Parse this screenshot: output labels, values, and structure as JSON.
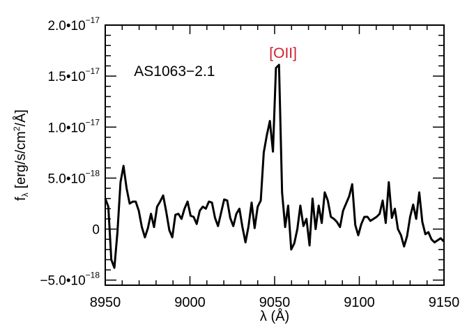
{
  "chart_data": {
    "type": "line",
    "title": "",
    "xlabel": "λ (Å)",
    "ylabel": "f_λ [erg/s/cm²/Å]",
    "ylabel_parts": {
      "f": "f",
      "lambda_sub": "λ",
      "unit_pre": "[erg/s/cm",
      "unit_sup": "2",
      "unit_post": "/Å]"
    },
    "xlim": [
      8950,
      9150
    ],
    "ylim": [
      -5.5e-18,
      2e-17
    ],
    "x_ticks": [
      {
        "value": 8950,
        "label": "8950"
      },
      {
        "value": 9000,
        "label": "9000"
      },
      {
        "value": 9050,
        "label": "9050"
      },
      {
        "value": 9100,
        "label": "9100"
      },
      {
        "value": 9150,
        "label": "9150"
      }
    ],
    "y_ticks": [
      {
        "value": 2e-17,
        "mantissa": "2.0•10",
        "exp": "−17"
      },
      {
        "value": 1.5e-17,
        "mantissa": "1.5•10",
        "exp": "−17"
      },
      {
        "value": 1e-17,
        "mantissa": "1.0•10",
        "exp": "−17"
      },
      {
        "value": 5e-18,
        "mantissa": "5.0•10",
        "exp": "−18"
      },
      {
        "value": 0,
        "mantissa": "0",
        "exp": ""
      },
      {
        "value": -5e-18,
        "mantissa": "−5.0•10",
        "exp": "−18"
      }
    ],
    "annotations": [
      {
        "id": "object",
        "text": "AS1063−2.1",
        "x": 8967,
        "y": 1.5e-17,
        "color": "#000000"
      },
      {
        "id": "line",
        "text": "[OII]",
        "x": 9055,
        "y": 1.68e-17,
        "color": "#cc1f2e"
      }
    ],
    "series": [
      {
        "color": "#000000",
        "x": [
          8950,
          8951.8,
          8953.6,
          8955.4,
          8957.2,
          8959.0,
          8960.8,
          8962.6,
          8964.4,
          8966.2,
          8968.0,
          8969.8,
          8971.6,
          8973.4,
          8975.2,
          8977.0,
          8978.8,
          8980.6,
          8982.4,
          8984.2,
          8986.0,
          8987.8,
          8989.6,
          8991.4,
          8993.2,
          8995.0,
          8996.8,
          8998.6,
          9000.4,
          9002.2,
          9004.0,
          9005.8,
          9007.6,
          9009.4,
          9011.2,
          9013.0,
          9014.8,
          9016.6,
          9018.4,
          9020.2,
          9022.0,
          9023.8,
          9025.6,
          9027.4,
          9029.2,
          9031.0,
          9032.8,
          9034.6,
          9036.4,
          9038.2,
          9040.0,
          9041.8,
          9043.6,
          9045.4,
          9047.2,
          9049.0,
          9050.8,
          9052.6,
          9054.4,
          9056.2,
          9058.0,
          9059.8,
          9061.6,
          9063.4,
          9065.2,
          9067.0,
          9068.8,
          9070.6,
          9072.4,
          9074.2,
          9076.0,
          9077.8,
          9079.6,
          9081.4,
          9083.2,
          9085.0,
          9086.8,
          9088.6,
          9090.4,
          9092.2,
          9094.0,
          9095.8,
          9097.6,
          9099.4,
          9101.2,
          9103.0,
          9104.8,
          9106.6,
          9108.4,
          9110.2,
          9112.0,
          9113.8,
          9115.6,
          9117.4,
          9119.2,
          9121.0,
          9122.8,
          9124.6,
          9126.4,
          9128.2,
          9130.0,
          9131.8,
          9133.6,
          9135.4,
          9137.2,
          9139.0,
          9140.8,
          9142.6,
          9144.4,
          9146.2,
          9148.0,
          9149.8
        ],
        "y": [
          3e-18,
          2.2e-18,
          -3e-18,
          -3.8e-18,
          -3e-19,
          4.6e-18,
          6.2e-18,
          4e-18,
          2.5e-18,
          2.7e-18,
          2.7e-18,
          1.8e-18,
          2e-19,
          -8e-19,
          1e-19,
          1.5e-18,
          2e-19,
          2.2e-18,
          2.7e-18,
          3.3e-18,
          1.7e-18,
          -1e-19,
          -8e-19,
          1.4e-18,
          1.5e-18,
          1e-18,
          2e-18,
          2.7e-18,
          1.3e-18,
          1.2e-18,
          5e-19,
          1.8e-18,
          2.2e-18,
          2e-18,
          2.7e-18,
          2.6e-18,
          1.1e-18,
          3e-19,
          1.6e-18,
          2.9e-18,
          2.8e-18,
          1.1e-18,
          3e-19,
          1.5e-18,
          2e-18,
          2e-19,
          -1.3e-18,
          3e-19,
          2.6e-18,
          1e-19,
          2.2e-18,
          2.8e-18,
          7.5e-18,
          9.2e-18,
          1.06e-17,
          7.6e-18,
          1.58e-17,
          1.61e-17,
          3.6e-18,
          2e-19,
          2.3e-18,
          -2e-18,
          -1.4e-18,
          0.0,
          2.3e-18,
          3e-19,
          1e-18,
          -1.6e-18,
          3e-18,
          0.0,
          2.3e-18,
          6e-19,
          3.6e-18,
          2.8e-18,
          1.2e-18,
          1e-18,
          7e-19,
          2e-19,
          1.8e-18,
          2.5e-18,
          3.2e-18,
          4.4e-18,
          4e-19,
          -6e-19,
          5e-19,
          1.2e-18,
          1.2e-18,
          8e-19,
          1e-18,
          1.2e-18,
          1.5e-18,
          2.8e-18,
          6e-19,
          4.6e-18,
          1.1e-18,
          2e-18,
          0.0,
          -6e-19,
          -1.7e-18,
          -7e-19,
          1.2e-18,
          2.4e-18,
          1e-18,
          3.6e-18,
          7e-19,
          -5e-19,
          -3e-19,
          -1e-18,
          -1.3e-18,
          -1.1e-18,
          -9e-19,
          -1.2e-18
        ]
      }
    ]
  }
}
